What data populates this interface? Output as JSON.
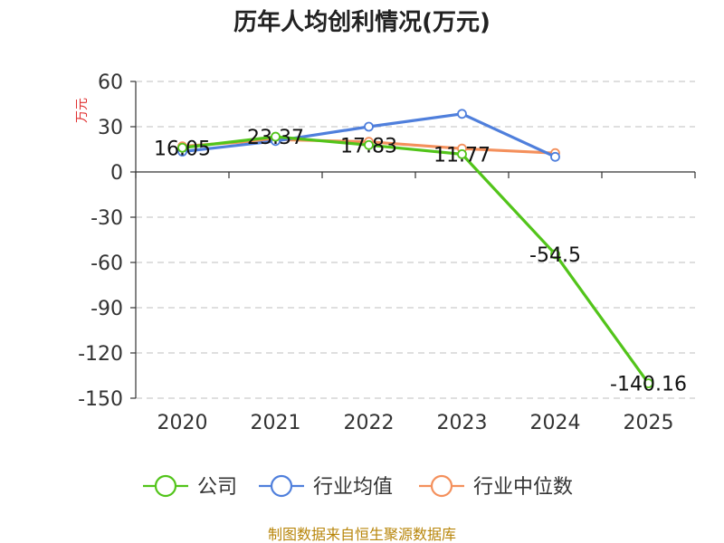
{
  "chart_data": {
    "type": "line",
    "title": "历年人均创利情况(万元)",
    "ylabel": "万元",
    "categories": [
      "2020",
      "2021",
      "2022",
      "2023",
      "2024",
      "2025"
    ],
    "yticks": [
      "60",
      "30",
      "0",
      "-30",
      "-60",
      "-90",
      "-120",
      "-150"
    ],
    "ylim": [
      -150,
      60
    ],
    "grid": true,
    "legend_position": "bottom",
    "series": [
      {
        "name": "公司",
        "color": "#52c41a",
        "values": [
          16.05,
          23.37,
          17.83,
          11.77,
          -54.5,
          -140.16
        ],
        "labels": [
          "16.05",
          "23.37",
          "17.83",
          "11.77",
          "-54.5",
          "-140.16"
        ]
      },
      {
        "name": "行业均值",
        "color": "#4f7fdc",
        "values": [
          13.5,
          20.5,
          30.0,
          38.5,
          10.0,
          null
        ]
      },
      {
        "name": "行业中位数",
        "color": "#f4905c",
        "values": [
          17.0,
          21.5,
          20.0,
          15.5,
          12.5,
          null
        ]
      }
    ]
  },
  "source": "制图数据来自恒生聚源数据库"
}
